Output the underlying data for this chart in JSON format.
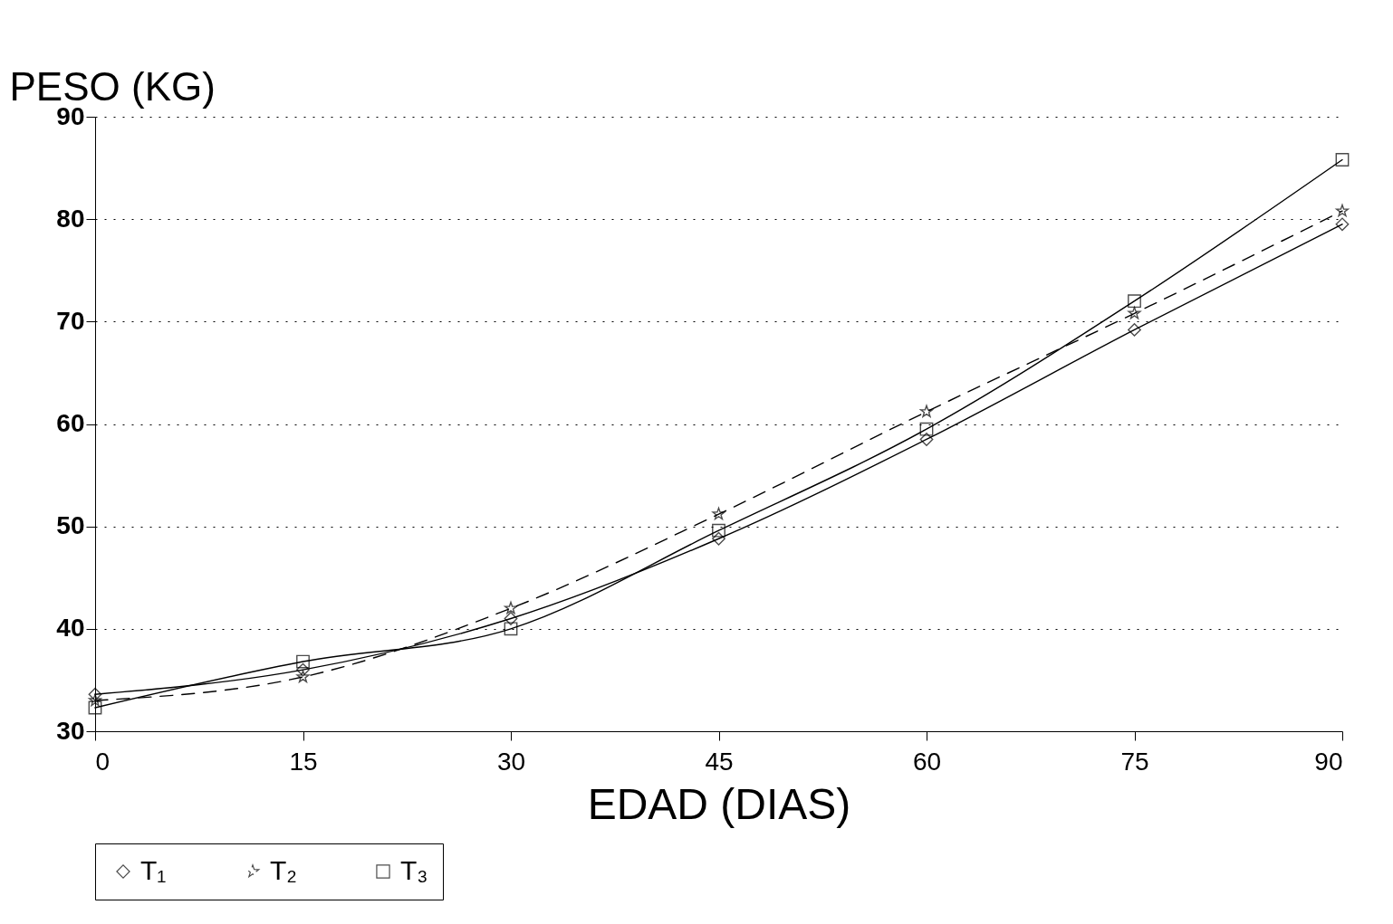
{
  "chart_data": {
    "type": "line",
    "ylabel": "PESO (KG)",
    "xlabel": "EDAD (DIAS)",
    "x": [
      0,
      15,
      30,
      45,
      60,
      75,
      90
    ],
    "xlim": [
      0,
      90
    ],
    "xticks": [
      0,
      15,
      30,
      45,
      60,
      75,
      90
    ],
    "ylim": [
      30,
      90
    ],
    "yticks": [
      30,
      40,
      50,
      60,
      70,
      80,
      90
    ],
    "grid": "y",
    "legend": "bottom",
    "series": [
      {
        "name": "T₁",
        "color": "#000000",
        "marker": "diamond",
        "line_style": "solid",
        "values": [
          33.6,
          36,
          41,
          48.8,
          58.5,
          69.2,
          79.5
        ]
      },
      {
        "name": "T₂",
        "color": "#000000",
        "marker": "star",
        "line_style": "dashed",
        "values": [
          33,
          35.3,
          42,
          51.2,
          61.2,
          70.8,
          80.8
        ]
      },
      {
        "name": "T₃",
        "color": "#000000",
        "marker": "square",
        "line_style": "solid",
        "values": [
          32.3,
          36.8,
          40,
          49.6,
          59.5,
          72,
          85.8
        ]
      }
    ]
  }
}
